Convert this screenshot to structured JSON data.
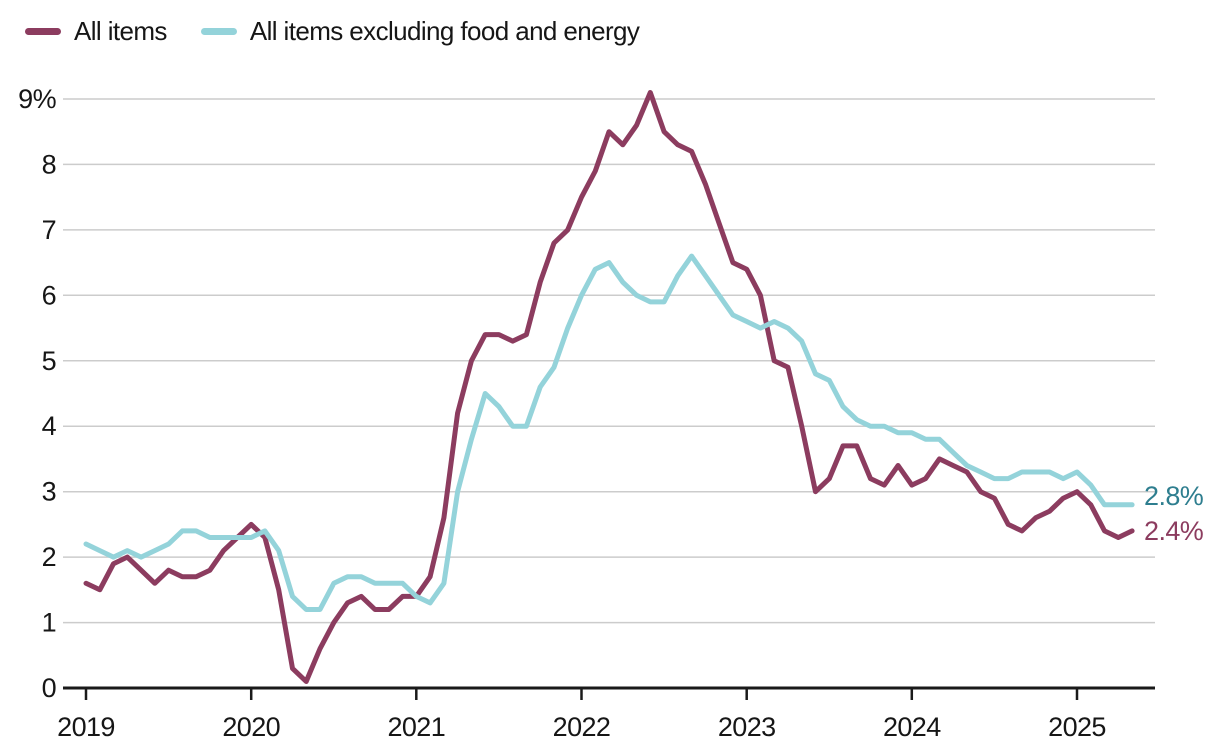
{
  "chart_data": {
    "type": "line",
    "title": "",
    "xlabel": "",
    "ylabel": "",
    "ylim": [
      0,
      9.5
    ],
    "grid": "horizontal",
    "legend_position": "top-left",
    "x": [
      "2019-01",
      "2019-02",
      "2019-03",
      "2019-04",
      "2019-05",
      "2019-06",
      "2019-07",
      "2019-08",
      "2019-09",
      "2019-10",
      "2019-11",
      "2019-12",
      "2020-01",
      "2020-02",
      "2020-03",
      "2020-04",
      "2020-05",
      "2020-06",
      "2020-07",
      "2020-08",
      "2020-09",
      "2020-10",
      "2020-11",
      "2020-12",
      "2021-01",
      "2021-02",
      "2021-03",
      "2021-04",
      "2021-05",
      "2021-06",
      "2021-07",
      "2021-08",
      "2021-09",
      "2021-10",
      "2021-11",
      "2021-12",
      "2022-01",
      "2022-02",
      "2022-03",
      "2022-04",
      "2022-05",
      "2022-06",
      "2022-07",
      "2022-08",
      "2022-09",
      "2022-10",
      "2022-11",
      "2022-12",
      "2023-01",
      "2023-02",
      "2023-03",
      "2023-04",
      "2023-05",
      "2023-06",
      "2023-07",
      "2023-08",
      "2023-09",
      "2023-10",
      "2023-11",
      "2023-12",
      "2024-01",
      "2024-02",
      "2024-03",
      "2024-04",
      "2024-05",
      "2024-06",
      "2024-07",
      "2024-08",
      "2024-09",
      "2024-10",
      "2024-11",
      "2024-12",
      "2025-01",
      "2025-02",
      "2025-03",
      "2025-04",
      "2025-05"
    ],
    "series": [
      {
        "id": "all-items",
        "name": "All items",
        "color": "#8c3c5f",
        "values": [
          1.6,
          1.5,
          1.9,
          2.0,
          1.8,
          1.6,
          1.8,
          1.7,
          1.7,
          1.8,
          2.1,
          2.3,
          2.5,
          2.3,
          1.5,
          0.3,
          0.1,
          0.6,
          1.0,
          1.3,
          1.4,
          1.2,
          1.2,
          1.4,
          1.4,
          1.7,
          2.6,
          4.2,
          5.0,
          5.4,
          5.4,
          5.3,
          5.4,
          6.2,
          6.8,
          7.0,
          7.5,
          7.9,
          8.5,
          8.3,
          8.6,
          9.1,
          8.5,
          8.3,
          8.2,
          7.7,
          7.1,
          6.5,
          6.4,
          6.0,
          5.0,
          4.9,
          4.0,
          3.0,
          3.2,
          3.7,
          3.7,
          3.2,
          3.1,
          3.4,
          3.1,
          3.2,
          3.5,
          3.4,
          3.3,
          3.0,
          2.9,
          2.5,
          2.4,
          2.6,
          2.7,
          2.9,
          3.0,
          2.8,
          2.4,
          2.3,
          2.4
        ]
      },
      {
        "id": "core",
        "name": "All items excluding food and energy",
        "color": "#94d3da",
        "values": [
          2.2,
          2.1,
          2.0,
          2.1,
          2.0,
          2.1,
          2.2,
          2.4,
          2.4,
          2.3,
          2.3,
          2.3,
          2.3,
          2.4,
          2.1,
          1.4,
          1.2,
          1.2,
          1.6,
          1.7,
          1.7,
          1.6,
          1.6,
          1.6,
          1.4,
          1.3,
          1.6,
          3.0,
          3.8,
          4.5,
          4.3,
          4.0,
          4.0,
          4.6,
          4.9,
          5.5,
          6.0,
          6.4,
          6.5,
          6.2,
          6.0,
          5.9,
          5.9,
          6.3,
          6.6,
          6.3,
          6.0,
          5.7,
          5.6,
          5.5,
          5.6,
          5.5,
          5.3,
          4.8,
          4.7,
          4.3,
          4.1,
          4.0,
          4.0,
          3.9,
          3.9,
          3.8,
          3.8,
          3.6,
          3.4,
          3.3,
          3.2,
          3.2,
          3.3,
          3.3,
          3.3,
          3.2,
          3.3,
          3.1,
          2.8,
          2.8,
          2.8
        ]
      }
    ],
    "y_ticks": [
      {
        "value": 9,
        "label": "9%"
      },
      {
        "value": 8,
        "label": "8"
      },
      {
        "value": 7,
        "label": "7"
      },
      {
        "value": 6,
        "label": "6"
      },
      {
        "value": 5,
        "label": "5"
      },
      {
        "value": 4,
        "label": "4"
      },
      {
        "value": 3,
        "label": "3"
      },
      {
        "value": 2,
        "label": "2"
      },
      {
        "value": 1,
        "label": "1"
      },
      {
        "value": 0,
        "label": "0"
      }
    ],
    "x_ticks": [
      {
        "label": "2019",
        "month_index": 0
      },
      {
        "label": "2020",
        "month_index": 12
      },
      {
        "label": "2021",
        "month_index": 24
      },
      {
        "label": "2022",
        "month_index": 36
      },
      {
        "label": "2023",
        "month_index": 48
      },
      {
        "label": "2024",
        "month_index": 60
      },
      {
        "label": "2025",
        "month_index": 72
      }
    ],
    "end_labels": [
      {
        "text": "2.8%",
        "color": "#2e7e8f",
        "series_index": 1
      },
      {
        "text": "2.4%",
        "color": "#8c3c5f",
        "series_index": 0
      }
    ],
    "colors": {
      "grid": "#cccccc",
      "axis": "#1a1a1a",
      "text": "#161616"
    }
  }
}
